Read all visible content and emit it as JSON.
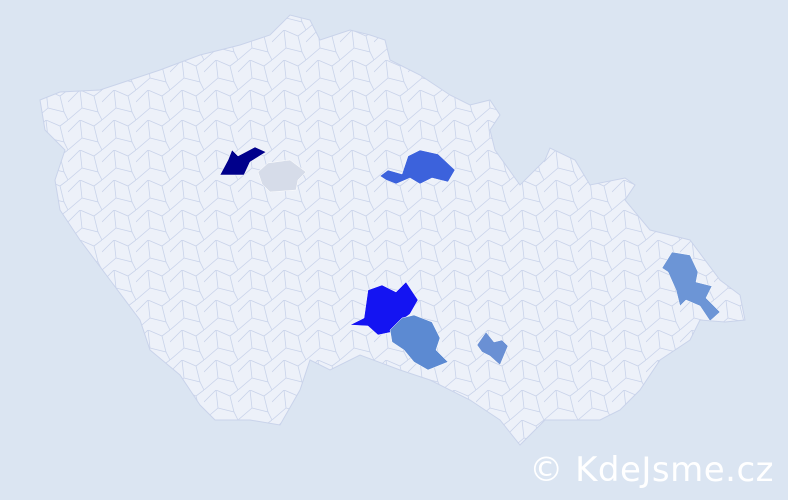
{
  "map": {
    "background_color": "#dbe5f2",
    "land_color": "#edf1f9",
    "border_color": "#c9d3ea",
    "highlighted_districts": [
      {
        "id": "district-a",
        "color": "#00008b"
      },
      {
        "id": "district-b",
        "color": "#d6dce9"
      },
      {
        "id": "district-c",
        "color": "#3c62dc"
      },
      {
        "id": "district-d",
        "color": "#1414f2"
      },
      {
        "id": "district-e",
        "color": "#5c8ad2"
      },
      {
        "id": "district-f",
        "color": "#6a90d4"
      },
      {
        "id": "district-g",
        "color": "#6c95d6"
      }
    ]
  },
  "watermark": {
    "text": "© KdeJsme.cz"
  }
}
